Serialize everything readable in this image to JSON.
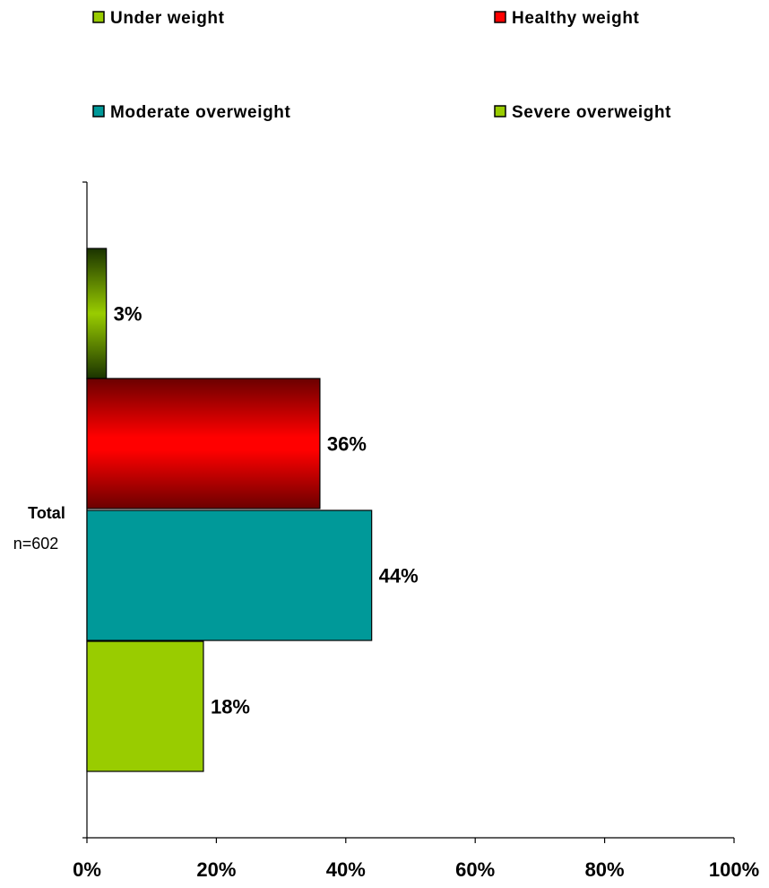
{
  "chart_data": {
    "type": "bar",
    "orientation": "horizontal",
    "categories": [
      "Total"
    ],
    "category_sublabels": [
      "n=602"
    ],
    "series": [
      {
        "name": "Under weight",
        "values": [
          3
        ],
        "label": "3%",
        "color": "#99cc00",
        "color_dark": "#1a3300",
        "gradient": "vertical"
      },
      {
        "name": "Healthy weight",
        "values": [
          36
        ],
        "label": "36%",
        "color": "#ff0000",
        "color_dark": "#6b0000",
        "gradient": "horizontal"
      },
      {
        "name": "Moderate overweight",
        "values": [
          44
        ],
        "label": "44%",
        "color": "#009999",
        "gradient": "none"
      },
      {
        "name": "Severe overweight",
        "values": [
          18
        ],
        "label": "18%",
        "color": "#99cc00",
        "gradient": "none"
      }
    ],
    "xlim": [
      0,
      100
    ],
    "xticks": [
      "0%",
      "20%",
      "40%",
      "60%",
      "80%",
      "100%"
    ],
    "grid": false,
    "legend_position": "top"
  }
}
